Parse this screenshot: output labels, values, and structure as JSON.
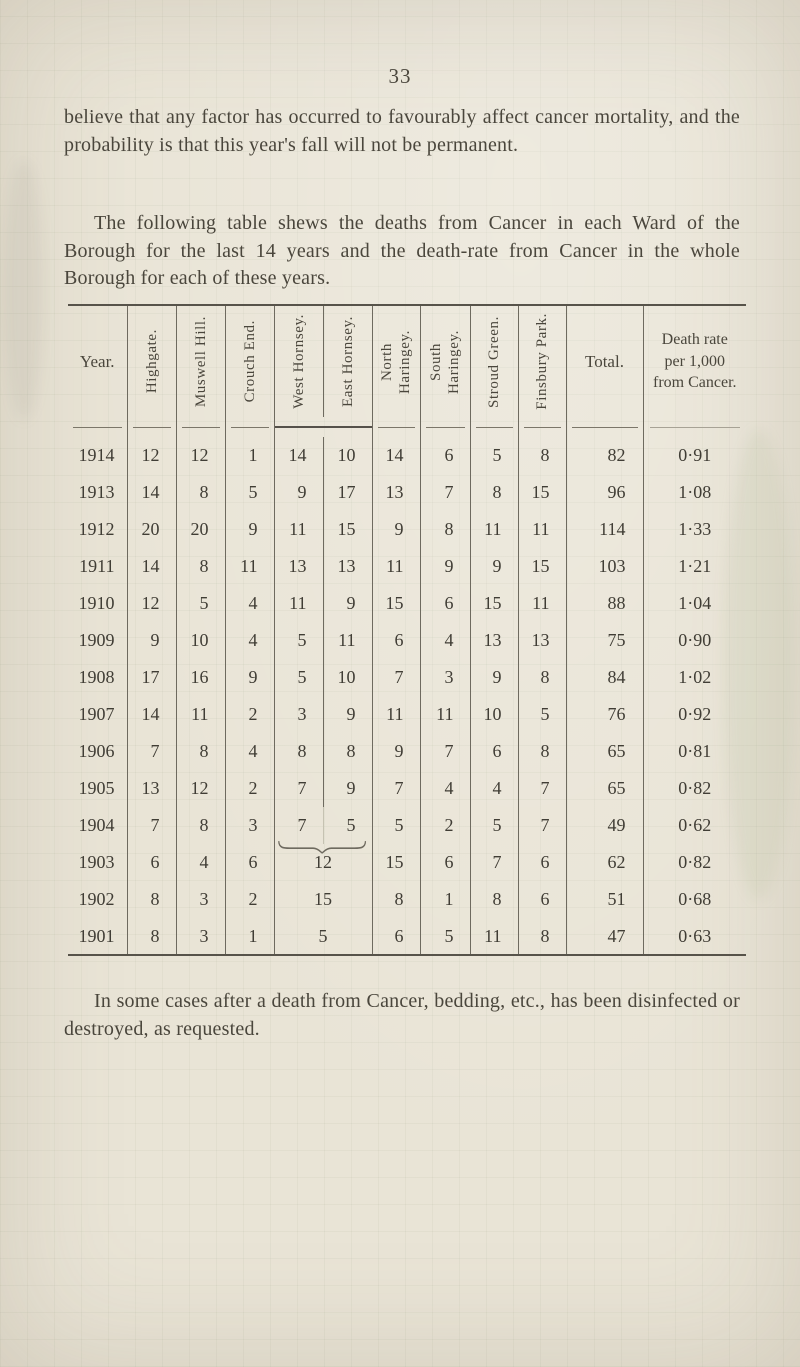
{
  "page": {
    "number": "33",
    "paragraph_1": "believe that any factor has occurred to favourably affect cancer mortality, and the probability is that this year's fall will not be permanent.",
    "paragraph_2": "The following table shews the deaths from Cancer in each Ward of the Borough for the last 14 years and the death-rate from Cancer in the whole Borough for each of these years.",
    "closing_paragraph": "In some cases after a death from Cancer, bedding, etc., has been disinfected or destroyed, as requested."
  },
  "table": {
    "headers": {
      "year": "Year.",
      "wards": [
        "Highgate.",
        "Muswell Hill.",
        "Crouch End.",
        "West Hornsey.",
        "East Hornsey.",
        "North\nHaringey.",
        "South\nHaringey.",
        "Stroud Green.",
        "Finsbury Park."
      ],
      "total": "Total.",
      "rate": "Death rate\nper 1,000\nfrom Cancer."
    },
    "rows": [
      {
        "year": "1914",
        "values": [
          "12",
          "12",
          "1",
          "14",
          "10",
          "14",
          "6",
          "5",
          "8"
        ],
        "total": "82",
        "rate": "0·91"
      },
      {
        "year": "1913",
        "values": [
          "14",
          "8",
          "5",
          "9",
          "17",
          "13",
          "7",
          "8",
          "15"
        ],
        "total": "96",
        "rate": "1·08"
      },
      {
        "year": "1912",
        "values": [
          "20",
          "20",
          "9",
          "11",
          "15",
          "9",
          "8",
          "11",
          "11"
        ],
        "total": "114",
        "rate": "1·33"
      },
      {
        "year": "1911",
        "values": [
          "14",
          "8",
          "11",
          "13",
          "13",
          "11",
          "9",
          "9",
          "15"
        ],
        "total": "103",
        "rate": "1·21"
      },
      {
        "year": "1910",
        "values": [
          "12",
          "5",
          "4",
          "11",
          "9",
          "15",
          "6",
          "15",
          "11"
        ],
        "total": "88",
        "rate": "1·04"
      },
      {
        "year": "1909",
        "values": [
          "9",
          "10",
          "4",
          "5",
          "11",
          "6",
          "4",
          "13",
          "13"
        ],
        "total": "75",
        "rate": "0·90"
      },
      {
        "year": "1908",
        "values": [
          "17",
          "16",
          "9",
          "5",
          "10",
          "7",
          "3",
          "9",
          "8"
        ],
        "total": "84",
        "rate": "1·02"
      },
      {
        "year": "1907",
        "values": [
          "14",
          "11",
          "2",
          "3",
          "9",
          "11",
          "11",
          "10",
          "5"
        ],
        "total": "76",
        "rate": "0·92"
      },
      {
        "year": "1906",
        "values": [
          "7",
          "8",
          "4",
          "8",
          "8",
          "9",
          "7",
          "6",
          "8"
        ],
        "total": "65",
        "rate": "0·81"
      },
      {
        "year": "1905",
        "values": [
          "13",
          "12",
          "2",
          "7",
          "9",
          "7",
          "4",
          "4",
          "7"
        ],
        "total": "65",
        "rate": "0·82"
      },
      {
        "year": "1904",
        "values": [
          "7",
          "8",
          "3",
          "7",
          "5",
          "5",
          "2",
          "5",
          "7"
        ],
        "total": "49",
        "rate": "0·62",
        "brace": true
      },
      {
        "year": "1903",
        "values": [
          "6",
          "4",
          "6",
          "12",
          "15",
          "6",
          "7",
          "6"
        ],
        "total": "62",
        "rate": "0·82",
        "merged": true
      },
      {
        "year": "1902",
        "values": [
          "8",
          "3",
          "2",
          "15",
          "8",
          "1",
          "8",
          "6"
        ],
        "total": "51",
        "rate": "0·68",
        "merged": true
      },
      {
        "year": "1901",
        "values": [
          "8",
          "3",
          "1",
          "5",
          "6",
          "5",
          "11",
          "8"
        ],
        "total": "47",
        "rate": "0·63",
        "merged": true
      }
    ]
  },
  "colors": {
    "paper": "#e9e4d6",
    "ink": "#46423a",
    "table_line": "#6e6a5f"
  }
}
